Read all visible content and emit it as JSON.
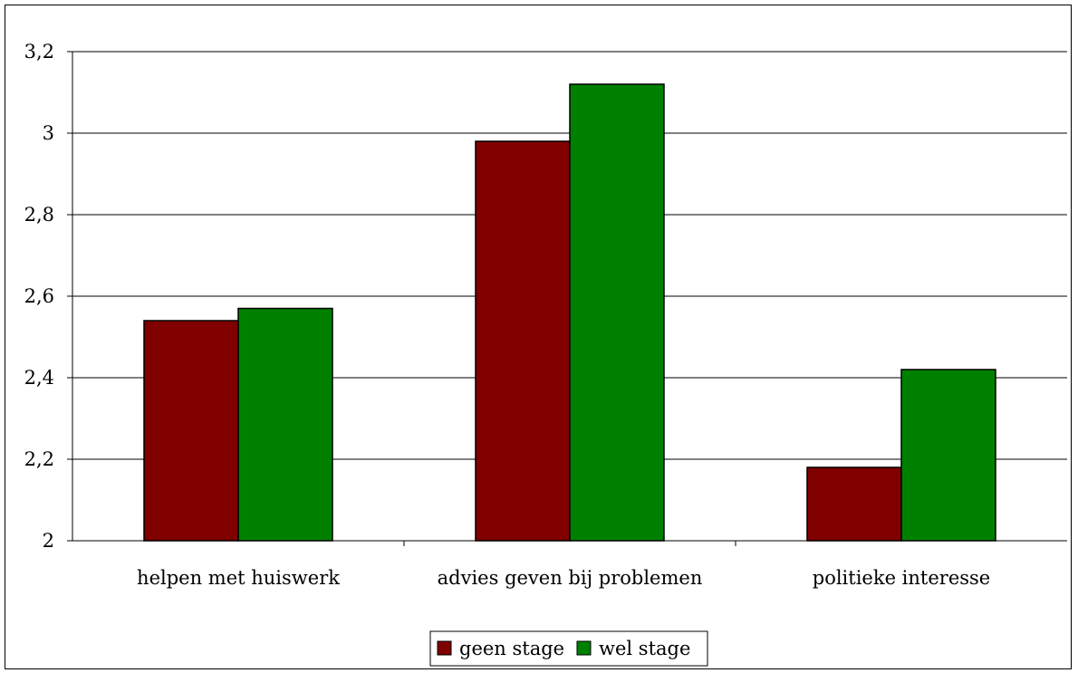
{
  "chart_data": {
    "type": "bar",
    "title": "",
    "xlabel": "",
    "ylabel": "",
    "categories": [
      "helpen met huiswerk",
      "advies geven bij problemen",
      "politieke interesse"
    ],
    "series": [
      {
        "name": "geen stage",
        "color": "#800000",
        "values": [
          2.54,
          2.98,
          2.18
        ]
      },
      {
        "name": "wel stage",
        "color": "#008000",
        "values": [
          2.57,
          3.12,
          2.42
        ]
      }
    ],
    "ylim": [
      2,
      3.2
    ],
    "yticks": [
      "2",
      "2,2",
      "2,4",
      "2,6",
      "2,8",
      "3",
      "3,2"
    ],
    "grid": true,
    "legend_position": "bottom"
  }
}
